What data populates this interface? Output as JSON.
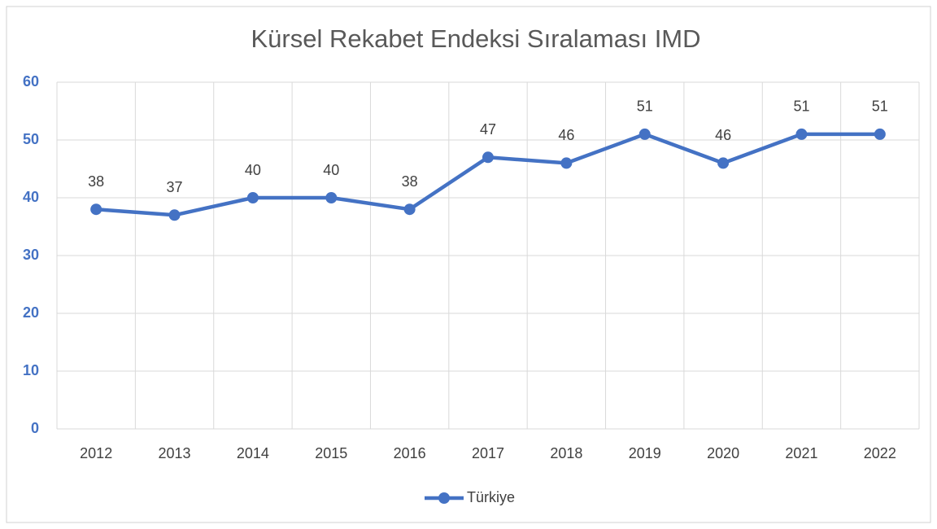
{
  "chart_data": {
    "type": "line",
    "title": "Kürsel Rekabet Endeksi Sıralaması IMD",
    "categories": [
      "2012",
      "2013",
      "2014",
      "2015",
      "2016",
      "2017",
      "2018",
      "2019",
      "2020",
      "2021",
      "2022"
    ],
    "series": [
      {
        "name": "Türkiye",
        "color": "#4472c4",
        "values": [
          38,
          37,
          40,
          40,
          38,
          47,
          46,
          51,
          46,
          51,
          51
        ]
      }
    ],
    "ylim": [
      0,
      60
    ],
    "yticks": [
      0,
      10,
      20,
      30,
      40,
      50,
      60
    ],
    "grid": true,
    "legend": "bottom",
    "data_labels": true
  }
}
